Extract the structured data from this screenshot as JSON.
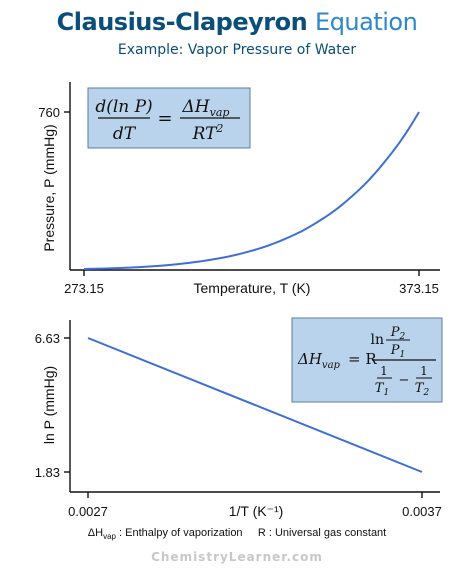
{
  "header": {
    "title_part1": "Clausius-Clapeyron",
    "title_part2": "Equation",
    "subtitle": "Example: Vapor Pressure of Water"
  },
  "equations": {
    "top": {
      "lhs_num": "d(ln P)",
      "lhs_den": "dT",
      "eq": "=",
      "rhs_num": "ΔH",
      "rhs_num_sub": "vap",
      "rhs_den": "RT",
      "rhs_den_sup": "2"
    },
    "bottom": {
      "lhs": "ΔH",
      "lhs_sub": "vap",
      "eq": "= R",
      "ln": "ln",
      "p2": "P",
      "p2_sub": "2",
      "p1": "P",
      "p1_sub": "1",
      "one": "1",
      "t1": "T",
      "t1_sub": "1",
      "t2": "T",
      "t2_sub": "2",
      "minus": "−"
    }
  },
  "legend": {
    "dh": "ΔH",
    "dh_sub": "vap",
    "dh_text": ": Enthalpy of vaporization",
    "r_text": "R : Universal gas constant"
  },
  "credit": "ChemistryLearner.com",
  "colors": {
    "curve": "#3f6fd3",
    "equation_box": "#b9d3ec",
    "title_dark": "#0a4e7a",
    "title_light": "#2f86c9"
  },
  "chart_data": [
    {
      "type": "line",
      "title": "",
      "xlabel": "Temperature, T (K)",
      "ylabel": "Pressure, P (mmHg)",
      "x_ticks": [
        "273.15",
        "373.15"
      ],
      "y_ticks": [
        "760"
      ],
      "xlim": [
        273.15,
        373.15
      ],
      "ylim": [
        0,
        760
      ],
      "series": [
        {
          "x": [
            273.15,
            283.15,
            293.15,
            303.15,
            313.15,
            323.15,
            333.15,
            343.15,
            353.15,
            363.15,
            373.15
          ],
          "values": [
            4.6,
            9.2,
            17.5,
            31.8,
            55.3,
            92.5,
            149.4,
            233.7,
            355.1,
            525.8,
            760
          ]
        }
      ]
    },
    {
      "type": "line",
      "title": "",
      "xlabel": "1/T (K⁻¹)",
      "ylabel": "ln P (mmHg)",
      "x_ticks": [
        "0.0027",
        "0.0037"
      ],
      "y_ticks": [
        "6.63",
        "1.83"
      ],
      "xlim": [
        0.0027,
        0.0037
      ],
      "ylim": [
        1.83,
        6.63
      ],
      "series": [
        {
          "x": [
            0.0027,
            0.0037
          ],
          "values": [
            6.63,
            1.83
          ]
        }
      ]
    }
  ]
}
